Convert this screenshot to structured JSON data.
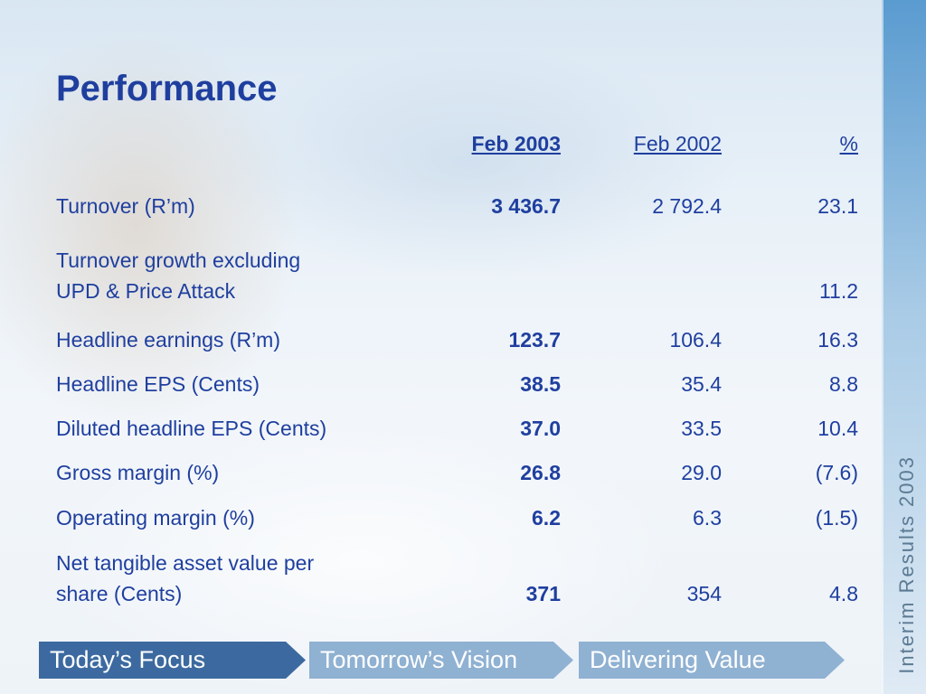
{
  "title": "Performance",
  "side_title": "Interim Results 2003",
  "columns": [
    "Feb 2003",
    "Feb 2002",
    "%"
  ],
  "rows": [
    {
      "label": "Turnover (R’m)",
      "feb2003": "3 436.7",
      "feb2002": "2 792.4",
      "pct": "23.1"
    },
    {
      "label_lines": [
        "Turnover growth excluding",
        "UPD & Price Attack"
      ],
      "feb2003": "",
      "feb2002": "",
      "pct": "11.2"
    },
    {
      "label": "Headline earnings (R’m)",
      "feb2003": "123.7",
      "feb2002": "106.4",
      "pct": "16.3"
    },
    {
      "label": "Headline EPS (Cents)",
      "feb2003": "38.5",
      "feb2002": "35.4",
      "pct": "8.8"
    },
    {
      "label": "Diluted headline EPS (Cents)",
      "feb2003": "37.0",
      "feb2002": "33.5",
      "pct": "10.4"
    },
    {
      "label": "Gross margin (%)",
      "feb2003": "26.8",
      "feb2002": "29.0",
      "pct": "(7.6)"
    },
    {
      "label": "Operating margin (%)",
      "feb2003": "6.2",
      "feb2002": "6.3",
      "pct": "(1.5)"
    },
    {
      "label_lines": [
        "Net tangible asset value per",
        "share (Cents)"
      ],
      "feb2003": "371",
      "feb2002": "354",
      "pct": "4.8"
    }
  ],
  "nav": [
    "Today’s Focus",
    "Tomorrow’s Vision",
    "Delivering Value"
  ],
  "colors": {
    "title": "#1f3f9f",
    "nav_active": "#3c6aa0",
    "nav_inactive": "#8fb1d2",
    "side_band": "#7fb0dc"
  }
}
